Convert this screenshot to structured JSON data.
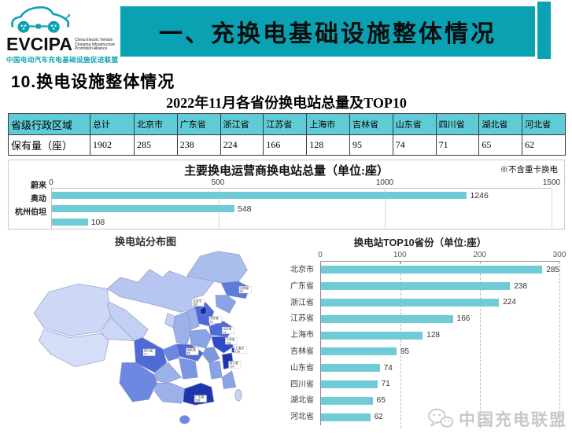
{
  "logo": {
    "acronym": "EVCIPA",
    "english_lines": [
      "China Electric Vehicle",
      "Charging Infrastructure",
      "Promotion Alliance"
    ],
    "chinese": "中国电动汽车充电基础设施促进联盟"
  },
  "banner": {
    "title": "一、充换电基础设施整体情况"
  },
  "section_heading": "10.换电设施整体情况",
  "table": {
    "title": "2022年11月各省份换电站总量及TOP10",
    "headers": [
      "省级行政区域",
      "总计",
      "北京市",
      "广东省",
      "浙江省",
      "江苏省",
      "上海市",
      "吉林省",
      "山东省",
      "四川省",
      "湖北省",
      "河北省"
    ],
    "row": {
      "label": "保有量（座）",
      "values": [
        "1902",
        "285",
        "238",
        "224",
        "166",
        "128",
        "95",
        "74",
        "71",
        "65",
        "62"
      ]
    }
  },
  "chart_data": [
    {
      "type": "bar",
      "orientation": "horizontal",
      "title": "主要换电运营商换电站总量（单位:座）",
      "note": "※不含重卡换电",
      "categories": [
        "蔚来",
        "奥动",
        "杭州伯坦"
      ],
      "values": [
        1246,
        548,
        108
      ],
      "xlim": [
        0,
        1500
      ],
      "xticks": [
        0,
        500,
        1000,
        1500
      ],
      "grid": "solid-light",
      "legend": "none",
      "bar_color": "#6fccd6"
    },
    {
      "type": "bar",
      "orientation": "horizontal",
      "title": "换电站TOP10省份（单位:座）",
      "categories": [
        "北京市",
        "广东省",
        "浙江省",
        "江苏省",
        "上海市",
        "吉林省",
        "山东省",
        "四川省",
        "湖北省",
        "河北省"
      ],
      "values": [
        285,
        238,
        224,
        166,
        128,
        95,
        74,
        71,
        65,
        62
      ],
      "xlim": [
        0,
        300
      ],
      "xticks": [
        0,
        100,
        200,
        300
      ],
      "grid": "dashed",
      "legend": "none",
      "bar_color": "#6fccd6"
    }
  ],
  "map": {
    "title": "换电站分布图",
    "labels": [
      {
        "name": "北京市",
        "value": 285
      },
      {
        "name": "广东省",
        "value": 238
      },
      {
        "name": "浙江省",
        "value": 224
      },
      {
        "name": "江苏省",
        "value": 166
      },
      {
        "name": "上海市",
        "value": 128
      },
      {
        "name": "吉林省",
        "value": 95
      },
      {
        "name": "山东省",
        "value": 74
      },
      {
        "name": "四川省",
        "value": 71
      },
      {
        "name": "湖北省",
        "value": 65
      },
      {
        "name": "河北省",
        "value": 62
      }
    ]
  },
  "watermark": {
    "icon": "wechat-icon",
    "text": "中国充电联盟"
  },
  "colors": {
    "accent_teal": "#0aa2b2",
    "table_header": "#5fcbd6",
    "bar": "#6fccd6",
    "map_dark": "#152a9e",
    "map_light": "#d5def8"
  }
}
